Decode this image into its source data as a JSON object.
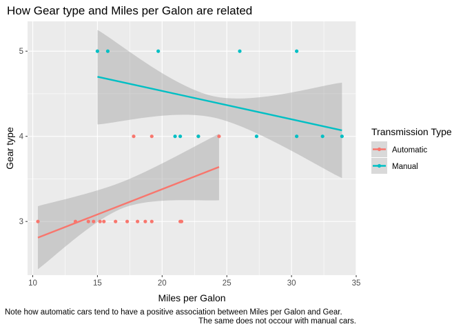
{
  "chart_data": {
    "type": "scatter",
    "title": "How Gear type and Miles per Galon are related",
    "xlabel": "Miles per Galon",
    "ylabel": "Gear type",
    "xlim": [
      9.6,
      35.0
    ],
    "ylim": [
      2.37,
      5.35
    ],
    "xticks": [
      "10",
      "15",
      "20",
      "25",
      "30",
      "35"
    ],
    "yticks": [
      "3",
      "4",
      "5"
    ],
    "grid": true,
    "legend": {
      "title": "Transmission Type",
      "placement": "right",
      "entries": [
        "Automatic",
        "Manual"
      ]
    },
    "series": [
      {
        "name": "Automatic",
        "color": "#F8766D",
        "points": [
          {
            "x": 10.4,
            "y": 3
          },
          {
            "x": 13.3,
            "y": 3
          },
          {
            "x": 14.3,
            "y": 3
          },
          {
            "x": 14.7,
            "y": 3
          },
          {
            "x": 15.2,
            "y": 3
          },
          {
            "x": 15.5,
            "y": 3
          },
          {
            "x": 16.4,
            "y": 3
          },
          {
            "x": 17.3,
            "y": 3
          },
          {
            "x": 18.1,
            "y": 3
          },
          {
            "x": 18.7,
            "y": 3
          },
          {
            "x": 19.2,
            "y": 3
          },
          {
            "x": 21.4,
            "y": 3
          },
          {
            "x": 21.5,
            "y": 3
          },
          {
            "x": 17.8,
            "y": 4
          },
          {
            "x": 19.2,
            "y": 4
          },
          {
            "x": 22.8,
            "y": 4
          },
          {
            "x": 24.4,
            "y": 4
          }
        ],
        "fit": {
          "x": [
            10.4,
            24.4
          ],
          "y": [
            2.81,
            3.64
          ]
        },
        "band": {
          "x": [
            10.4,
            17.0,
            24.4
          ],
          "lower": [
            2.44,
            3.16,
            3.25
          ],
          "upper": [
            3.18,
            3.47,
            4.03
          ]
        }
      },
      {
        "name": "Manual",
        "color": "#00BFC4",
        "points": [
          {
            "x": 15.0,
            "y": 5
          },
          {
            "x": 15.8,
            "y": 5
          },
          {
            "x": 19.7,
            "y": 5
          },
          {
            "x": 26.0,
            "y": 5
          },
          {
            "x": 30.4,
            "y": 5
          },
          {
            "x": 21.0,
            "y": 4
          },
          {
            "x": 21.4,
            "y": 4
          },
          {
            "x": 22.8,
            "y": 4
          },
          {
            "x": 27.3,
            "y": 4
          },
          {
            "x": 30.4,
            "y": 4
          },
          {
            "x": 32.4,
            "y": 4
          },
          {
            "x": 33.9,
            "y": 4
          }
        ],
        "fit": {
          "x": [
            15.0,
            33.9
          ],
          "y": [
            4.7,
            4.07
          ]
        },
        "band": {
          "x": [
            15.0,
            24.0,
            33.9
          ],
          "lower": [
            4.14,
            4.22,
            3.51
          ],
          "upper": [
            5.25,
            4.47,
            4.63
          ]
        }
      }
    ],
    "caption": [
      "Note how automatic cars tend to have a positive association between Miles per Galon and Gear.",
      "The same does not occour with manual cars."
    ]
  }
}
